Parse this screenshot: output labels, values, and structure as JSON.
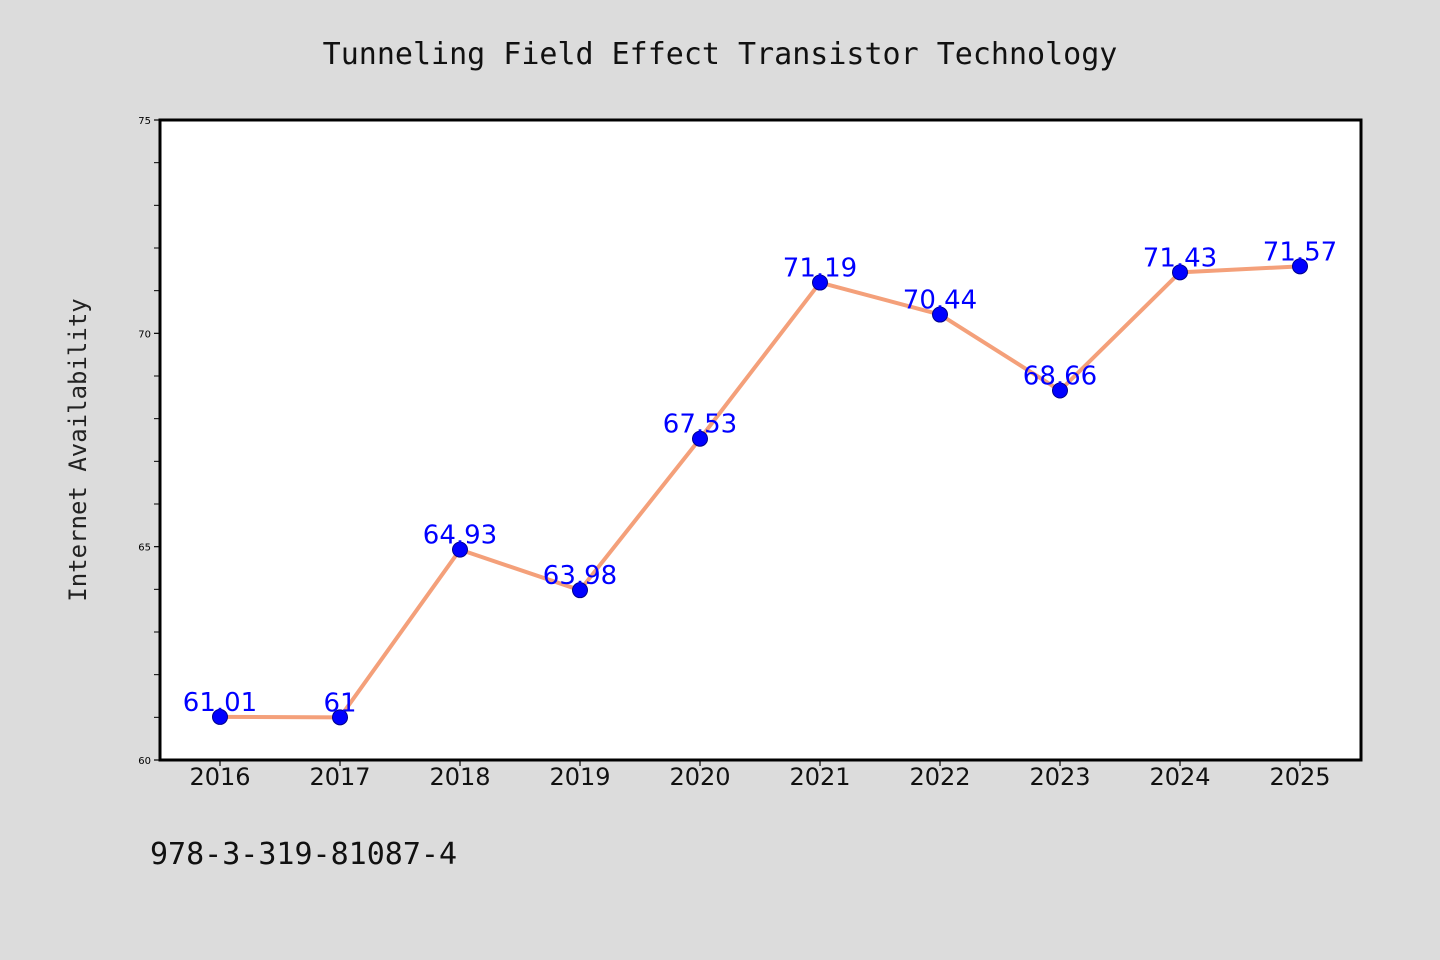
{
  "chart_data": {
    "type": "line",
    "title": "Tunneling Field Effect Transistor Technology",
    "xlabel": "",
    "ylabel": "Internet Availability",
    "categories": [
      "2016",
      "2017",
      "2018",
      "2019",
      "2020",
      "2021",
      "2022",
      "2023",
      "2024",
      "2025"
    ],
    "series": [
      {
        "values": [
          61.01,
          61,
          64.93,
          63.98,
          67.53,
          71.19,
          70.44,
          68.66,
          71.43,
          71.57
        ],
        "data_labels": [
          "61.01",
          "61",
          "64.93",
          "63.98",
          "67.53",
          "71.19",
          "70.44",
          "68.66",
          "71.43",
          "71.57"
        ]
      }
    ],
    "ylim": [
      60,
      75
    ],
    "yticks": [
      "60",
      "65",
      "70",
      "75"
    ],
    "grid": false,
    "legend": "none",
    "colors": {
      "line": "#f4a07a",
      "marker": "#0000ff",
      "label": "#0000ff",
      "background": "#dcdcdc",
      "plot_background": "#ffffff"
    }
  },
  "footer": {
    "code": "978-3-319-81087-4"
  }
}
